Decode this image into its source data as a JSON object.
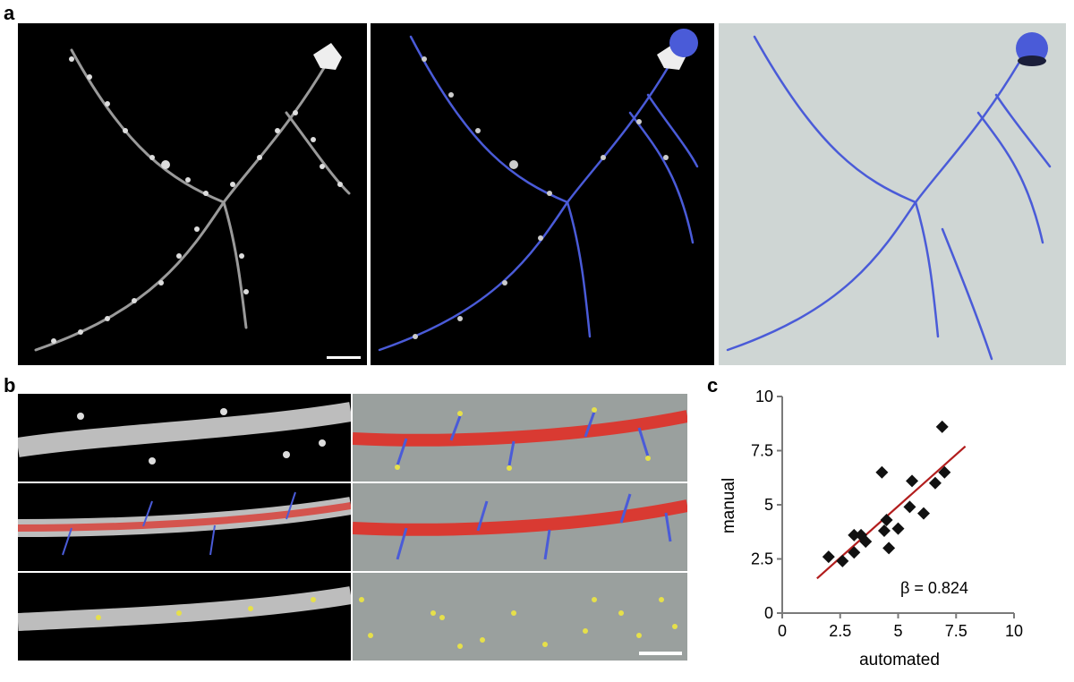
{
  "figure": {
    "panel_labels": {
      "a": "a",
      "b": "b",
      "c": "c"
    },
    "colors": {
      "neuron_blue": "#4a5bd8",
      "dendrite_red": "#d93a32",
      "spine_yellow": "#e6e04a",
      "background_gray_light": "#cfd6d4",
      "background_gray": "#9aa09e",
      "fit_line": "#b21d1d",
      "marker": "#111111"
    }
  },
  "chart_data": {
    "type": "scatter",
    "xlabel": "automated",
    "ylabel": "manual",
    "xlim": [
      0,
      10
    ],
    "ylim": [
      0,
      10
    ],
    "xticks": [
      "0",
      "2.5",
      "5",
      "7.5",
      "10"
    ],
    "yticks": [
      "0",
      "2.5",
      "5",
      "7.5",
      "10"
    ],
    "annotation": "β = 0.824",
    "points": [
      {
        "x": 2.0,
        "y": 2.6
      },
      {
        "x": 2.6,
        "y": 2.4
      },
      {
        "x": 3.1,
        "y": 2.8
      },
      {
        "x": 3.1,
        "y": 3.6
      },
      {
        "x": 3.4,
        "y": 3.6
      },
      {
        "x": 3.6,
        "y": 3.3
      },
      {
        "x": 4.3,
        "y": 6.5
      },
      {
        "x": 4.4,
        "y": 3.8
      },
      {
        "x": 4.5,
        "y": 4.3
      },
      {
        "x": 4.6,
        "y": 3.0
      },
      {
        "x": 5.0,
        "y": 3.9
      },
      {
        "x": 5.5,
        "y": 4.9
      },
      {
        "x": 5.6,
        "y": 6.1
      },
      {
        "x": 6.1,
        "y": 4.6
      },
      {
        "x": 6.6,
        "y": 6.0
      },
      {
        "x": 6.9,
        "y": 8.6
      },
      {
        "x": 7.0,
        "y": 6.5
      }
    ],
    "fit_line": {
      "x": [
        1.5,
        7.9
      ],
      "y": [
        1.6,
        7.7
      ]
    }
  }
}
